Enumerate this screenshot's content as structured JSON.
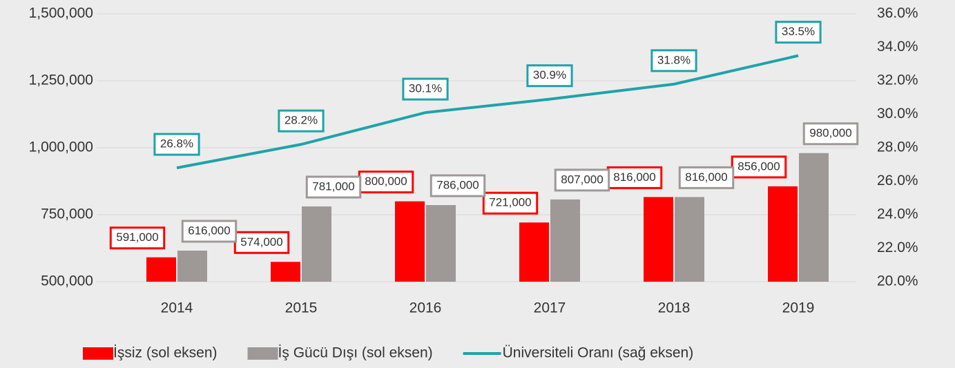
{
  "chart_data": {
    "type": "bar",
    "categories": [
      "2014",
      "2015",
      "2016",
      "2017",
      "2018",
      "2019"
    ],
    "series": [
      {
        "name": "İşsiz (sol eksen)",
        "color": "#ff0000",
        "values": [
          591000,
          574000,
          800000,
          721000,
          816000,
          856000
        ],
        "value_labels": [
          "591,000",
          "574,000",
          "800,000",
          "721,000",
          "816,000",
          "856,000"
        ]
      },
      {
        "name": "İş Gücü Dışı (sol eksen)",
        "color": "#9e9897",
        "values": [
          616000,
          781000,
          786000,
          807000,
          816000,
          980000
        ],
        "value_labels": [
          "616,000",
          "781,000",
          "786,000",
          "807,000",
          "816,000",
          "980,000"
        ]
      },
      {
        "name": "Üniversiteli Oranı (sağ eksen)",
        "type": "line",
        "axis": "y2",
        "color": "#1fa3a8",
        "values": [
          26.8,
          28.2,
          30.1,
          30.9,
          31.8,
          33.5
        ],
        "value_labels": [
          "26.8%",
          "28.2%",
          "30.1%",
          "30.9%",
          "31.8%",
          "33.5%"
        ]
      }
    ],
    "ylim": [
      500000,
      1500000
    ],
    "yticks": [
      {
        "value": 500000,
        "label": "500,000"
      },
      {
        "value": 750000,
        "label": "750,000"
      },
      {
        "value": 1000000,
        "label": "1,000,000"
      },
      {
        "value": 1250000,
        "label": "1,250,000"
      },
      {
        "value": 1500000,
        "label": "1,500,000"
      }
    ],
    "y2lim": [
      20,
      36
    ],
    "y2ticks": [
      {
        "value": 20,
        "label": "20.0%"
      },
      {
        "value": 22,
        "label": "22.0%"
      },
      {
        "value": 24,
        "label": "24.0%"
      },
      {
        "value": 26,
        "label": "26.0%"
      },
      {
        "value": 28,
        "label": "28.0%"
      },
      {
        "value": 30,
        "label": "30.0%"
      },
      {
        "value": 32,
        "label": "32.0%"
      },
      {
        "value": 34,
        "label": "34.0%"
      },
      {
        "value": 36,
        "label": "36.0%"
      }
    ],
    "grid": true,
    "legend": "bottom"
  }
}
